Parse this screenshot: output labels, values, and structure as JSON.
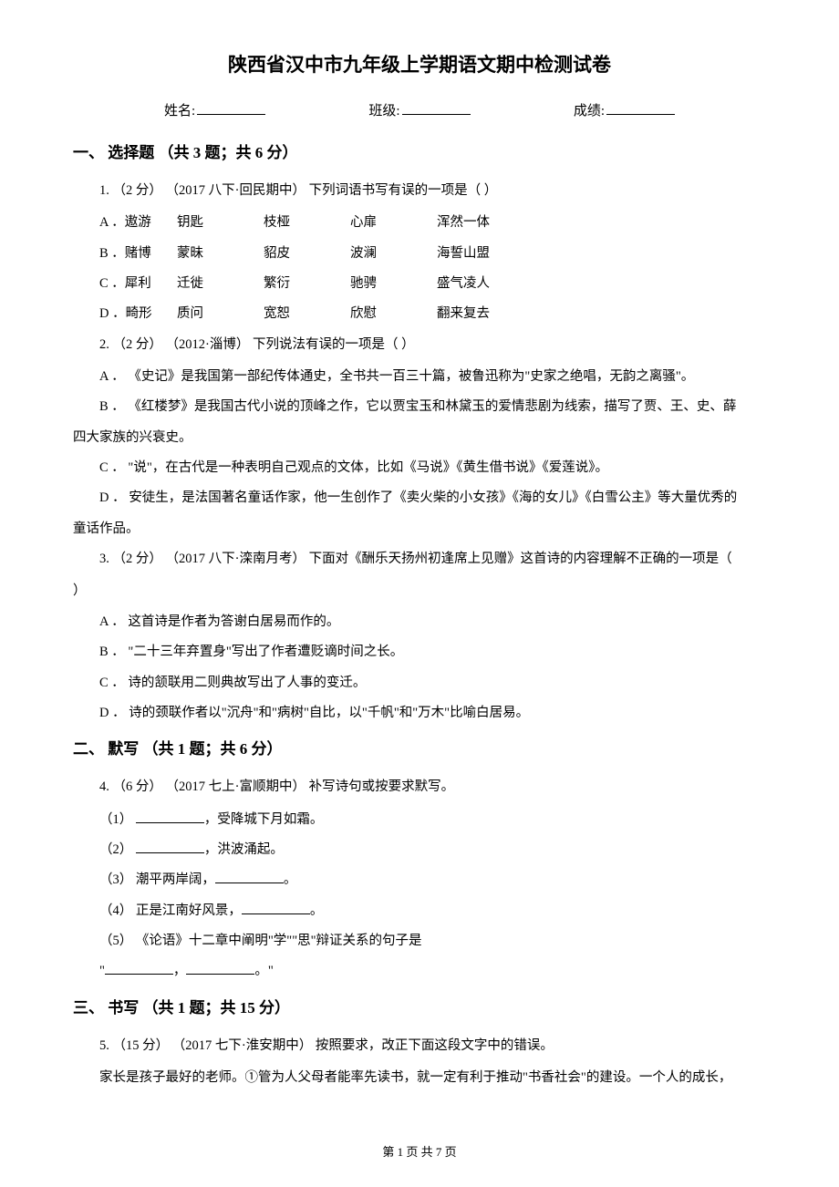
{
  "title": "陕西省汉中市九年级上学期语文期中检测试卷",
  "info": {
    "name_label": "姓名:",
    "class_label": "班级:",
    "score_label": "成绩:"
  },
  "section1": {
    "header": "一、 选择题 （共 3 题；共 6 分）",
    "q1": {
      "stem": "1. （2 分） （2017 八下·回民期中） 下列词语书写有误的一项是（     ）",
      "optA": {
        "label": "A ．遨游",
        "w1": "钥匙",
        "w2": "枝桠",
        "w3": "心扉",
        "w4": "浑然一体"
      },
      "optB": {
        "label": "B ．赌博",
        "w1": "蒙昧",
        "w2": "貂皮",
        "w3": "波澜",
        "w4": "海誓山盟"
      },
      "optC": {
        "label": "C ．犀利",
        "w1": "迁徙",
        "w2": "繁衍",
        "w3": "驰骋",
        "w4": "盛气凌人"
      },
      "optD": {
        "label": "D ．畸形",
        "w1": "质问",
        "w2": "宽恕",
        "w3": "欣慰",
        "w4": "翻来复去"
      }
    },
    "q2": {
      "stem": "2. （2 分） （2012·淄博） 下列说法有误的一项是（     ）",
      "optA": "A ． 《史记》是我国第一部纪传体通史，全书共一百三十篇，被鲁迅称为\"史家之绝唱，无韵之离骚\"。",
      "optB": "B ． 《红楼梦》是我国古代小说的顶峰之作，它以贾宝玉和林黛玉的爱情悲剧为线索，描写了贾、王、史、薛",
      "optB_cont": "四大家族的兴衰史。",
      "optC": "C ． \"说\"，在古代是一种表明自己观点的文体，比如《马说》《黄生借书说》《爱莲说》。",
      "optD": "D ． 安徒生，是法国著名童话作家，他一生创作了《卖火柴的小女孩》《海的女儿》《白雪公主》等大量优秀的",
      "optD_cont": "童话作品。"
    },
    "q3": {
      "stem": "3. （2 分） （2017 八下·滦南月考） 下面对《酬乐天扬州初逢席上见赠》这首诗的内容理解不正确的一项是（   ",
      "stem_cont": "）",
      "optA": "A ． 这首诗是作者为答谢白居易而作的。",
      "optB": "B ． \"二十三年弃置身\"写出了作者遭贬谪时间之长。",
      "optC": "C ． 诗的颔联用二则典故写出了人事的变迁。",
      "optD": "D ． 诗的颈联作者以\"沉舟\"和\"病树\"自比，以\"千帆\"和\"万木\"比喻白居易。"
    }
  },
  "section2": {
    "header": "二、 默写 （共 1 题；共 6 分）",
    "q4": {
      "stem": "4. （6 分） （2017 七上·富顺期中） 补写诗句或按要求默写。",
      "s1_pre": "（1） ",
      "s1_post": "，受降城下月如霜。",
      "s2_pre": "（2） ",
      "s2_post": "，洪波涌起。",
      "s3_pre": "（3） 潮平两岸阔，",
      "s3_post": "。",
      "s4_pre": "（4） 正是江南好风景，",
      "s4_post": "。",
      "s5": "（5） 《论语》十二章中阐明\"学\"\"思\"辩证关系的句子是",
      "s5_q1": "\"",
      "s5_mid": "，",
      "s5_q2": "。\""
    }
  },
  "section3": {
    "header": "三、 书写 （共 1 题；共 15 分）",
    "q5": {
      "stem": "5. （15 分） （2017 七下·淮安期中） 按照要求，改正下面这段文字中的错误。",
      "para": "家长是孩子最好的老师。①管为人父母者能率先读书，就一定有利于推动\"书香社会\"的建设。一个人的成长，"
    }
  },
  "footer": "第 1 页 共 7 页"
}
